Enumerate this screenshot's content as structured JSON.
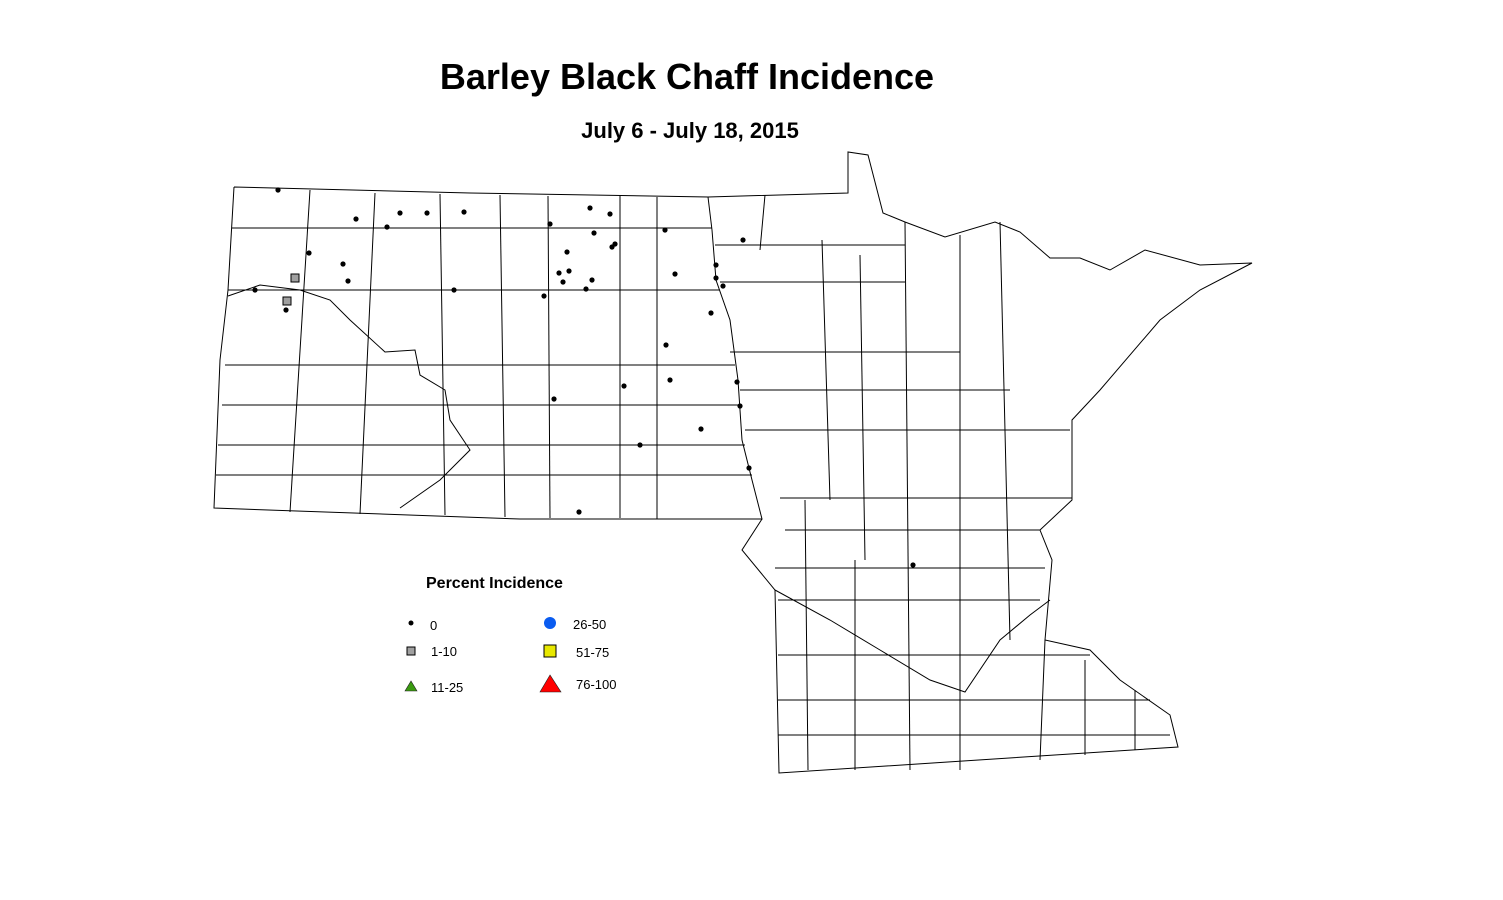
{
  "title": "Barley Black Chaff Incidence",
  "subtitle": "July 6 - July 18, 2015",
  "legend": {
    "title": "Percent Incidence",
    "items": [
      {
        "label": "0",
        "symbol": "small-dot",
        "color": "#000000"
      },
      {
        "label": "1-10",
        "symbol": "square",
        "color": "#a0a0a0"
      },
      {
        "label": "11-25",
        "symbol": "triangle",
        "color": "#3a9a10"
      },
      {
        "label": "26-50",
        "symbol": "circle",
        "color": "#0a5cf0"
      },
      {
        "label": "51-75",
        "symbol": "square",
        "color": "#e8e800"
      },
      {
        "label": "76-100",
        "symbol": "triangle",
        "color": "#ff0000"
      }
    ]
  },
  "map": {
    "regions": [
      "North Dakota",
      "Minnesota"
    ],
    "observation_counts": {
      "0": 43,
      "1-10": 2,
      "11-25": 0,
      "26-50": 0,
      "51-75": 0,
      "76-100": 0
    }
  }
}
